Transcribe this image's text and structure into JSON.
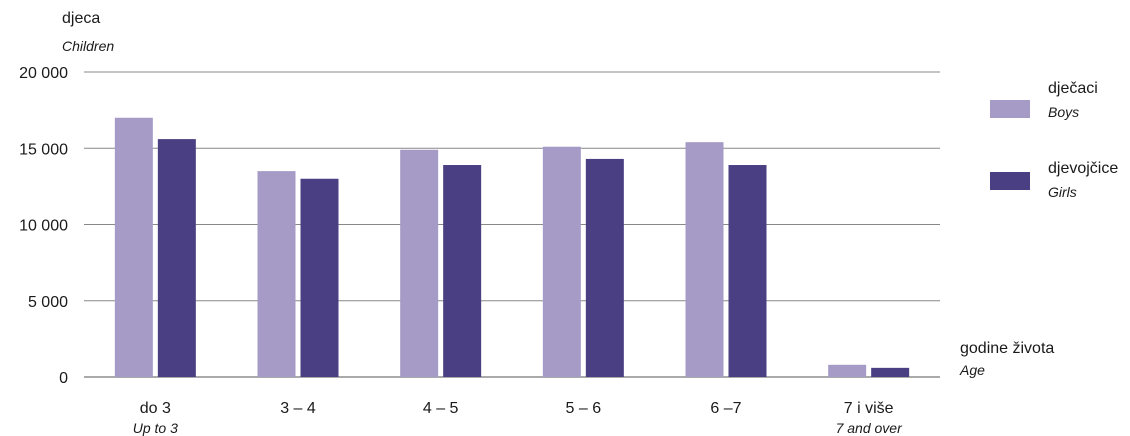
{
  "chart_data": {
    "type": "bar",
    "ylabel": "djeca",
    "ylabel_en": "Children",
    "xlabel": "godine života",
    "xlabel_en": "Age",
    "ylim": [
      0,
      20000
    ],
    "yticks": [
      0,
      5000,
      10000,
      15000,
      20000
    ],
    "ytick_labels": [
      "0",
      "5 000",
      "10 000",
      "15 000",
      "20 000"
    ],
    "categories": [
      "do 3",
      "3 – 4",
      "4 – 5",
      "5 – 6",
      "6 –7",
      "7 i više"
    ],
    "categories_en": [
      "Up to 3",
      "",
      "",
      "",
      "",
      "7 and over"
    ],
    "series": [
      {
        "name": "dječaci",
        "name_en": "Boys",
        "color": "#a69bc6",
        "values": [
          17000,
          13500,
          14900,
          15100,
          15400,
          800
        ]
      },
      {
        "name": "djevojčice",
        "name_en": "Girls",
        "color": "#4a3f82",
        "values": [
          15600,
          13000,
          13900,
          14300,
          13900,
          600
        ]
      }
    ],
    "grid": true,
    "legend_position": "right"
  }
}
